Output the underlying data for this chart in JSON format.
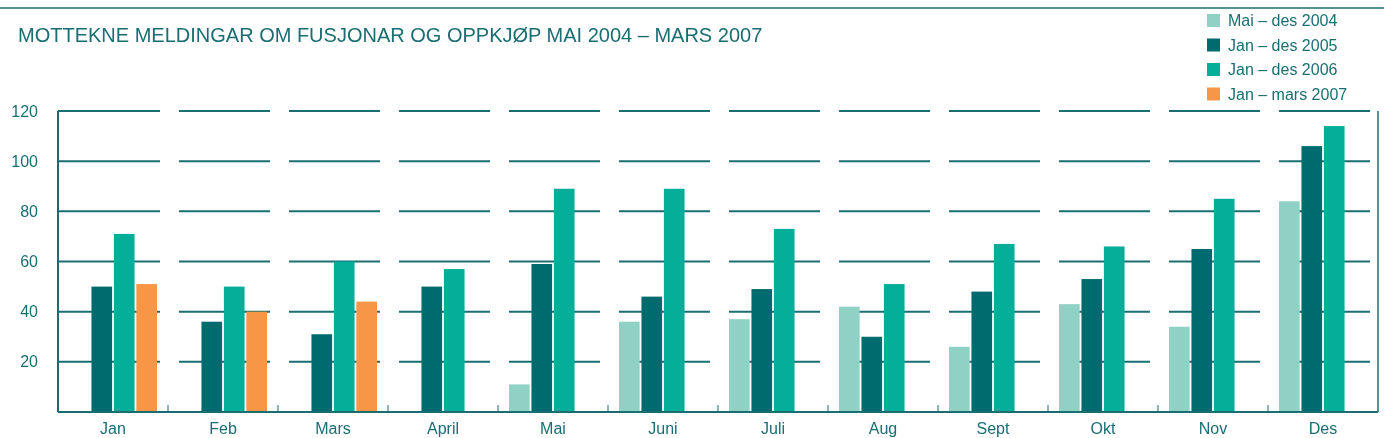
{
  "chart_data": {
    "type": "bar",
    "title": "MOTTEKNE MELDINGAR OM FUSJONAR OG OPPKJØP MAI 2004 – MARS 2007",
    "categories": [
      "Jan",
      "Feb",
      "Mars",
      "April",
      "Mai",
      "Juni",
      "Juli",
      "Aug",
      "Sept",
      "Okt",
      "Nov",
      "Des"
    ],
    "series": [
      {
        "name": "Mai – des 2004",
        "color": "#8fd1c5",
        "values": [
          null,
          null,
          null,
          null,
          11,
          36,
          37,
          42,
          26,
          43,
          34,
          84
        ]
      },
      {
        "name": "Jan – des 2005",
        "color": "#006b6e",
        "values": [
          50,
          36,
          31,
          50,
          59,
          46,
          49,
          30,
          48,
          53,
          65,
          106
        ]
      },
      {
        "name": "Jan – des 2006",
        "color": "#04ae98",
        "values": [
          71,
          50,
          60,
          57,
          89,
          89,
          73,
          51,
          67,
          66,
          85,
          114
        ]
      },
      {
        "name": "Jan – mars 2007",
        "color": "#f79646",
        "values": [
          51,
          40,
          44,
          null,
          null,
          null,
          null,
          null,
          null,
          null,
          null,
          null
        ]
      }
    ],
    "ylim": [
      0,
      120
    ],
    "yticks": [
      20,
      40,
      60,
      80,
      100,
      120
    ],
    "grid": "y",
    "legend": "top right"
  }
}
